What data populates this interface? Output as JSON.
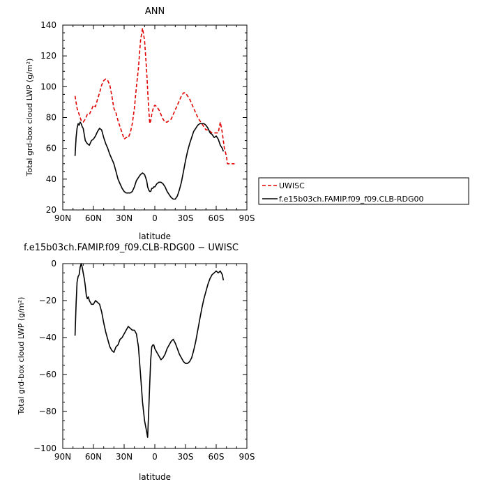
{
  "chart_data": [
    {
      "type": "line",
      "title": "ANN",
      "xlabel": "latitude",
      "ylabel": "Total grd-box cloud LWP (g/m²)",
      "xlim": [
        90,
        -90
      ],
      "ylim": [
        20,
        140
      ],
      "x_ticks": [
        90,
        60,
        30,
        0,
        -30,
        -60,
        -90
      ],
      "x_tick_labels": [
        "90N",
        "60N",
        "30N",
        "0",
        "30S",
        "60S",
        "90S"
      ],
      "y_ticks": [
        20,
        40,
        60,
        80,
        100,
        120,
        140
      ],
      "y_tick_labels": [
        "20",
        "40",
        "60",
        "80",
        "100",
        "120",
        "140"
      ],
      "legend_position": "right, outside",
      "series": [
        {
          "name": "UWISC",
          "color": "#e00000",
          "style": "dashed",
          "x": [
            78,
            76,
            74,
            72,
            70,
            68,
            66,
            64,
            62,
            60,
            58,
            56,
            54,
            52,
            50,
            48,
            46,
            44,
            42,
            40,
            38,
            36,
            34,
            32,
            30,
            28,
            26,
            24,
            22,
            20,
            18,
            16,
            14,
            12,
            10,
            8,
            7,
            6,
            5,
            4,
            3,
            2,
            1,
            0,
            -2,
            -4,
            -6,
            -8,
            -10,
            -12,
            -14,
            -16,
            -18,
            -20,
            -22,
            -24,
            -26,
            -28,
            -30,
            -32,
            -34,
            -36,
            -38,
            -40,
            -42,
            -44,
            -46,
            -48,
            -50,
            -52,
            -54,
            -56,
            -58,
            -60,
            -62,
            -64,
            -66,
            -68,
            -70,
            -71,
            -72,
            -73,
            -74,
            -75,
            -76,
            -77,
            -78
          ],
          "y": [
            94,
            86,
            82,
            78,
            77,
            79,
            82,
            82,
            85,
            88,
            87,
            92,
            96,
            101,
            104,
            105,
            104,
            101,
            94,
            86,
            83,
            78,
            74,
            70,
            66,
            67,
            67,
            70,
            76,
            86,
            100,
            112,
            130,
            138,
            130,
            110,
            98,
            86,
            76,
            78,
            82,
            85,
            87,
            88,
            87,
            85,
            82,
            79,
            77,
            77,
            78,
            79,
            82,
            85,
            88,
            91,
            94,
            96,
            96,
            94,
            92,
            89,
            86,
            83,
            80,
            78,
            76,
            74,
            72,
            72,
            71,
            70,
            70,
            70,
            70,
            77,
            70,
            60,
            55,
            50,
            50,
            50,
            50,
            50,
            50,
            50,
            50
          ]
        },
        {
          "name": "f.e15b03ch.FAMIP.f09_f09.CLB-RDG00",
          "color": "#000000",
          "style": "solid",
          "x": [
            78,
            77,
            76,
            75,
            74,
            73,
            72,
            71,
            70,
            68,
            66,
            64,
            62,
            60,
            58,
            56,
            54,
            52,
            50,
            48,
            46,
            44,
            42,
            40,
            38,
            36,
            34,
            32,
            30,
            28,
            26,
            24,
            22,
            20,
            18,
            16,
            14,
            12,
            10,
            8,
            7,
            6,
            5,
            4,
            3,
            2,
            1,
            0,
            -2,
            -4,
            -6,
            -8,
            -10,
            -12,
            -14,
            -16,
            -18,
            -20,
            -22,
            -24,
            -26,
            -28,
            -30,
            -32,
            -34,
            -36,
            -38,
            -40,
            -42,
            -44,
            -46,
            -48,
            -50,
            -52,
            -54,
            -56,
            -58,
            -60,
            -62,
            -64,
            -66,
            -67
          ],
          "y": [
            55,
            67,
            73,
            76,
            75,
            77,
            76,
            74,
            73,
            65,
            63,
            62,
            65,
            66,
            68,
            71,
            73,
            72,
            67,
            63,
            60,
            56,
            53,
            50,
            45,
            40,
            37,
            34,
            32,
            31,
            31,
            31,
            32,
            35,
            39,
            41,
            43,
            44,
            43,
            39,
            35,
            33,
            32,
            32,
            34,
            34,
            35,
            35,
            37,
            38,
            38,
            37,
            35,
            32,
            30,
            28,
            27,
            27,
            29,
            33,
            38,
            45,
            52,
            58,
            63,
            67,
            71,
            73,
            75,
            76,
            76,
            76,
            75,
            73,
            70,
            69,
            67,
            68,
            66,
            62,
            60,
            58
          ]
        }
      ]
    },
    {
      "type": "line",
      "title": "f.e15b03ch.FAMIP.f09_f09.CLB-RDG00 − UWISC",
      "xlabel": "latitude",
      "ylabel": "Total grd-box cloud LWP (g/m²)",
      "xlim": [
        90,
        -90
      ],
      "ylim": [
        -100,
        0
      ],
      "x_ticks": [
        90,
        60,
        30,
        0,
        -30,
        -60,
        -90
      ],
      "x_tick_labels": [
        "90N",
        "60N",
        "30N",
        "0",
        "30S",
        "60S",
        "90S"
      ],
      "y_ticks": [
        -100,
        -80,
        -60,
        -40,
        -20,
        0
      ],
      "y_tick_labels": [
        "−100",
        "−80",
        "−60",
        "−40",
        "−20",
        "0"
      ],
      "series": [
        {
          "color": "#000000",
          "style": "solid",
          "x": [
            78,
            77,
            76,
            75,
            74,
            73,
            72,
            71,
            70,
            69,
            68,
            67,
            66,
            65,
            64,
            62,
            60,
            58,
            56,
            54,
            52,
            50,
            48,
            46,
            44,
            42,
            40,
            38,
            36,
            34,
            32,
            30,
            28,
            26,
            24,
            22,
            20,
            18,
            16,
            14,
            12,
            10,
            8,
            7,
            6,
            5,
            4,
            3,
            2,
            1,
            0,
            -2,
            -4,
            -6,
            -8,
            -10,
            -12,
            -14,
            -16,
            -18,
            -20,
            -22,
            -24,
            -26,
            -28,
            -30,
            -32,
            -34,
            -36,
            -38,
            -40,
            -42,
            -44,
            -46,
            -48,
            -50,
            -52,
            -54,
            -56,
            -58,
            -60,
            -62,
            -64,
            -66,
            -67
          ],
          "y": [
            -39,
            -22,
            -10,
            -7,
            -6,
            -2,
            0,
            -2,
            -5,
            -8,
            -12,
            -17,
            -19,
            -18,
            -20,
            -22,
            -22,
            -20,
            -21,
            -22,
            -26,
            -32,
            -37,
            -41,
            -45,
            -47,
            -48,
            -45,
            -44,
            -41,
            -40,
            -38,
            -36,
            -34,
            -35,
            -36,
            -36,
            -38,
            -45,
            -60,
            -75,
            -85,
            -91,
            -94,
            -80,
            -65,
            -52,
            -45,
            -44,
            -44,
            -46,
            -48,
            -50,
            -52,
            -51,
            -49,
            -46,
            -44,
            -42,
            -41,
            -43,
            -46,
            -49,
            -51,
            -53,
            -54,
            -54,
            -53,
            -51,
            -47,
            -42,
            -36,
            -30,
            -24,
            -19,
            -15,
            -11,
            -8,
            -6,
            -5,
            -4,
            -5,
            -4,
            -6,
            -9
          ]
        }
      ]
    }
  ]
}
